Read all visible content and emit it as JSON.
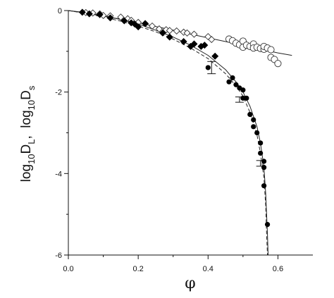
{
  "chart_data": {
    "type": "scatter",
    "title": "",
    "xlabel": "φ",
    "ylabel_parts": {
      "part1": "log",
      "sub1": "10",
      "part2": "D",
      "sub2": "L",
      "part3": ",  log",
      "sub3": "10",
      "part4": "D",
      "sub4": "s"
    },
    "xlim": [
      0.0,
      0.7
    ],
    "ylim": [
      -6,
      0
    ],
    "xticks": [
      0.0,
      0.2,
      0.4,
      0.6
    ],
    "xtick_labels": [
      "0.0",
      "0.2",
      "0.4",
      "0.6"
    ],
    "yticks": [
      0,
      -2,
      -4,
      -6
    ],
    "ytick_labels": [
      "0",
      "-2",
      "-4",
      "-6"
    ],
    "grid": false,
    "legend": "none",
    "series": [
      {
        "marker": "open-diamond",
        "points": [
          [
            0.05,
            -0.05
          ],
          [
            0.07,
            -0.06
          ],
          [
            0.09,
            -0.08
          ],
          [
            0.1,
            -0.12
          ],
          [
            0.12,
            -0.13
          ],
          [
            0.15,
            -0.16
          ],
          [
            0.17,
            -0.2
          ],
          [
            0.18,
            -0.24
          ],
          [
            0.2,
            -0.29
          ],
          [
            0.22,
            -0.32
          ],
          [
            0.24,
            -0.38
          ],
          [
            0.26,
            -0.45
          ],
          [
            0.28,
            -0.47
          ],
          [
            0.29,
            -0.49
          ],
          [
            0.31,
            -0.5
          ],
          [
            0.33,
            -0.53
          ],
          [
            0.34,
            -0.55
          ],
          [
            0.36,
            -0.58
          ],
          [
            0.4,
            -0.64
          ],
          [
            0.41,
            -0.71
          ]
        ]
      },
      {
        "marker": "open-circle",
        "points": [
          [
            0.46,
            -0.7
          ],
          [
            0.47,
            -0.74
          ],
          [
            0.48,
            -0.8
          ],
          [
            0.49,
            -0.84
          ],
          [
            0.5,
            -0.75
          ],
          [
            0.5,
            -0.9
          ],
          [
            0.51,
            -0.85
          ],
          [
            0.52,
            -0.88
          ],
          [
            0.53,
            -0.82
          ],
          [
            0.53,
            -0.92
          ],
          [
            0.54,
            -0.9
          ],
          [
            0.55,
            -0.93
          ],
          [
            0.56,
            -0.95
          ],
          [
            0.56,
            -0.88
          ],
          [
            0.57,
            -0.92
          ],
          [
            0.58,
            -0.96
          ],
          [
            0.58,
            -1.15
          ],
          [
            0.59,
            -1.2
          ],
          [
            0.6,
            -1.3
          ]
        ]
      },
      {
        "marker": "filled-diamond",
        "points": [
          [
            0.04,
            -0.04
          ],
          [
            0.06,
            -0.08
          ],
          [
            0.09,
            -0.1
          ],
          [
            0.12,
            -0.18
          ],
          [
            0.16,
            -0.25
          ],
          [
            0.18,
            -0.3
          ],
          [
            0.19,
            -0.33
          ],
          [
            0.2,
            -0.4
          ],
          [
            0.22,
            -0.32
          ],
          [
            0.27,
            -0.55
          ],
          [
            0.29,
            -0.65
          ],
          [
            0.33,
            -0.76
          ],
          [
            0.35,
            -0.88
          ],
          [
            0.36,
            -0.82
          ],
          [
            0.38,
            -0.88
          ],
          [
            0.39,
            -0.85
          ],
          [
            0.42,
            -1.12
          ]
        ]
      },
      {
        "marker": "filled-circle",
        "points": [
          [
            0.4,
            -1.4
          ],
          [
            0.46,
            -1.75
          ],
          [
            0.47,
            -1.65
          ],
          [
            0.48,
            -1.82
          ],
          [
            0.49,
            -1.9
          ],
          [
            0.5,
            -1.95
          ],
          [
            0.5,
            -2.15
          ],
          [
            0.51,
            -2.15
          ],
          [
            0.52,
            -2.55
          ],
          [
            0.53,
            -2.68
          ],
          [
            0.53,
            -2.85
          ],
          [
            0.54,
            -3.0
          ],
          [
            0.55,
            -3.25
          ],
          [
            0.55,
            -3.5
          ],
          [
            0.56,
            -3.7
          ],
          [
            0.56,
            -3.85
          ],
          [
            0.56,
            -4.3
          ],
          [
            0.57,
            -5.25
          ]
        ]
      }
    ],
    "error_bars": [
      {
        "x": 0.41,
        "y": -1.4,
        "low": -1.55,
        "high": -1.25
      },
      {
        "x": 0.49,
        "y": -2.2,
        "low": -2.25,
        "high": -2.12
      },
      {
        "x": 0.55,
        "y": -3.75,
        "low": -3.82,
        "high": -3.68
      }
    ],
    "curves": [
      {
        "style": "solid",
        "points": [
          [
            0.0,
            0.0
          ],
          [
            0.05,
            -0.06
          ],
          [
            0.1,
            -0.14
          ],
          [
            0.15,
            -0.21
          ],
          [
            0.2,
            -0.3
          ],
          [
            0.25,
            -0.39
          ],
          [
            0.3,
            -0.48
          ],
          [
            0.35,
            -0.58
          ],
          [
            0.4,
            -0.67
          ],
          [
            0.45,
            -0.76
          ],
          [
            0.5,
            -0.86
          ],
          [
            0.55,
            -0.95
          ],
          [
            0.6,
            -1.04
          ],
          [
            0.64,
            -1.1
          ]
        ]
      },
      {
        "style": "solid",
        "points": [
          [
            0.0,
            0.0
          ],
          [
            0.05,
            -0.05
          ],
          [
            0.1,
            -0.13
          ],
          [
            0.15,
            -0.22
          ],
          [
            0.2,
            -0.33
          ],
          [
            0.25,
            -0.48
          ],
          [
            0.3,
            -0.65
          ],
          [
            0.35,
            -0.85
          ],
          [
            0.4,
            -1.1
          ],
          [
            0.45,
            -1.45
          ],
          [
            0.48,
            -1.75
          ],
          [
            0.5,
            -2.0
          ],
          [
            0.52,
            -2.35
          ],
          [
            0.54,
            -2.85
          ],
          [
            0.55,
            -3.25
          ],
          [
            0.56,
            -3.85
          ],
          [
            0.565,
            -4.5
          ],
          [
            0.57,
            -5.5
          ],
          [
            0.572,
            -6.0
          ]
        ]
      },
      {
        "style": "dashed",
        "points": [
          [
            0.0,
            0.0
          ],
          [
            0.05,
            -0.07
          ],
          [
            0.1,
            -0.16
          ],
          [
            0.15,
            -0.26
          ],
          [
            0.2,
            -0.38
          ],
          [
            0.25,
            -0.52
          ],
          [
            0.3,
            -0.7
          ],
          [
            0.35,
            -0.92
          ],
          [
            0.4,
            -1.18
          ],
          [
            0.45,
            -1.55
          ],
          [
            0.48,
            -1.85
          ],
          [
            0.5,
            -2.1
          ],
          [
            0.52,
            -2.5
          ],
          [
            0.54,
            -3.05
          ],
          [
            0.55,
            -3.5
          ],
          [
            0.56,
            -4.1
          ],
          [
            0.565,
            -4.8
          ],
          [
            0.568,
            -5.6
          ],
          [
            0.57,
            -6.0
          ]
        ]
      }
    ]
  }
}
